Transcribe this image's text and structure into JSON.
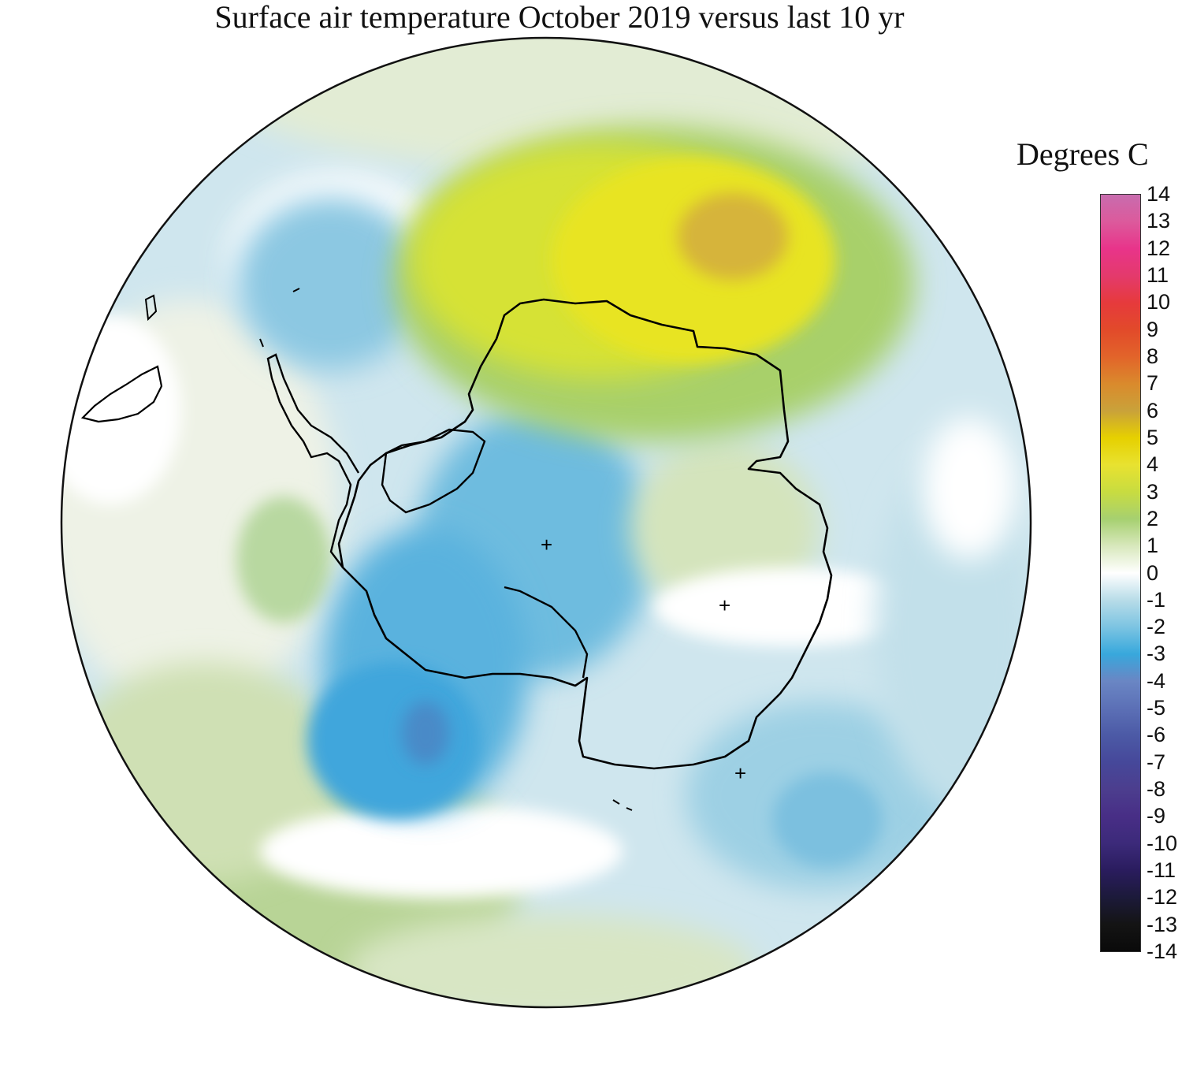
{
  "title": "Surface air temperature October 2019 versus last 10 yr",
  "legend": {
    "title": "Degrees C",
    "ticks": [
      "14",
      "13",
      "12",
      "11",
      "10",
      "9",
      "8",
      "7",
      "6",
      "5",
      "4",
      "3",
      "2",
      "1",
      "0",
      "-1",
      "-2",
      "-3",
      "-4",
      "-5",
      "-6",
      "-7",
      "-8",
      "-9",
      "-10",
      "-11",
      "-12",
      "-13",
      "-14"
    ],
    "colors": [
      "#c86cae",
      "#dc5a9c",
      "#e8348a",
      "#e43a6c",
      "#e63a3c",
      "#e24a2a",
      "#e2642a",
      "#da8a2c",
      "#c9a23a",
      "#e6d000",
      "#e8e230",
      "#c8dc40",
      "#a6d070",
      "#d8e8bc",
      "#ffffff",
      "#b8dce8",
      "#7cc4e2",
      "#38a8dc",
      "#6a86c4",
      "#5c70b6",
      "#4c5aa6",
      "#46489a",
      "#4c3e8e",
      "#482e86",
      "#3c2a7a",
      "#2a1c5e",
      "#1c1a3a",
      "#141414",
      "#0a0a0a"
    ]
  },
  "map": {
    "markers": [
      "+",
      "+",
      "+"
    ]
  }
}
